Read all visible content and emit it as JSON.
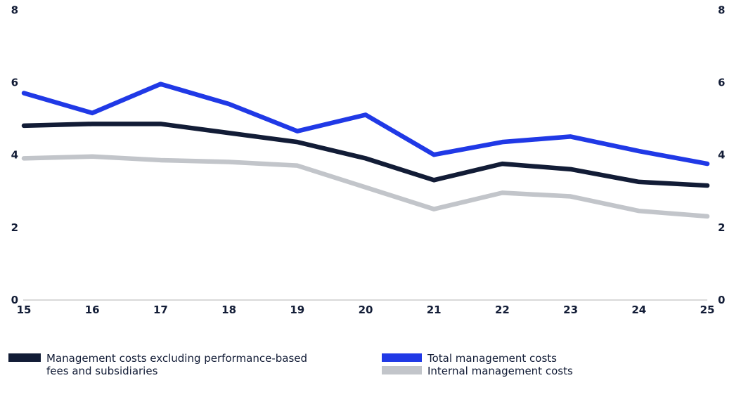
{
  "chart_data": {
    "type": "line",
    "title": "",
    "xlabel": "",
    "ylabel": "",
    "x": [
      15,
      16,
      17,
      18,
      19,
      20,
      21,
      22,
      23,
      24,
      25
    ],
    "ylim": [
      0,
      8
    ],
    "yticks": [
      0,
      2,
      4,
      6,
      8
    ],
    "y_axis_sides": "both",
    "grid": false,
    "legend_position": "bottom",
    "axis_line_color": "#d9d9d9",
    "tick_label_color": "#121c36",
    "series": [
      {
        "name": "Total management costs",
        "color": "#2039e6",
        "values": [
          5.7,
          5.15,
          5.95,
          5.4,
          4.65,
          5.1,
          4.0,
          4.35,
          4.5,
          4.1,
          3.75
        ]
      },
      {
        "name": "Management costs excluding performance-based fees and subsidiaries",
        "color": "#121c36",
        "values": [
          4.8,
          4.85,
          4.85,
          4.6,
          4.35,
          3.9,
          3.3,
          3.75,
          3.6,
          3.25,
          3.15
        ]
      },
      {
        "name": "Internal management costs",
        "color": "#c2c5ca",
        "values": [
          3.9,
          3.95,
          3.85,
          3.8,
          3.7,
          3.1,
          2.5,
          2.95,
          2.85,
          2.45,
          2.3
        ]
      }
    ]
  },
  "legend": {
    "items": [
      {
        "label": "Management costs excluding performance-based fees and subsidiaries",
        "color": "#121c36"
      },
      {
        "label": "Total management costs",
        "color": "#2039e6"
      },
      {
        "label": "Internal management costs",
        "color": "#c2c5ca"
      }
    ]
  }
}
